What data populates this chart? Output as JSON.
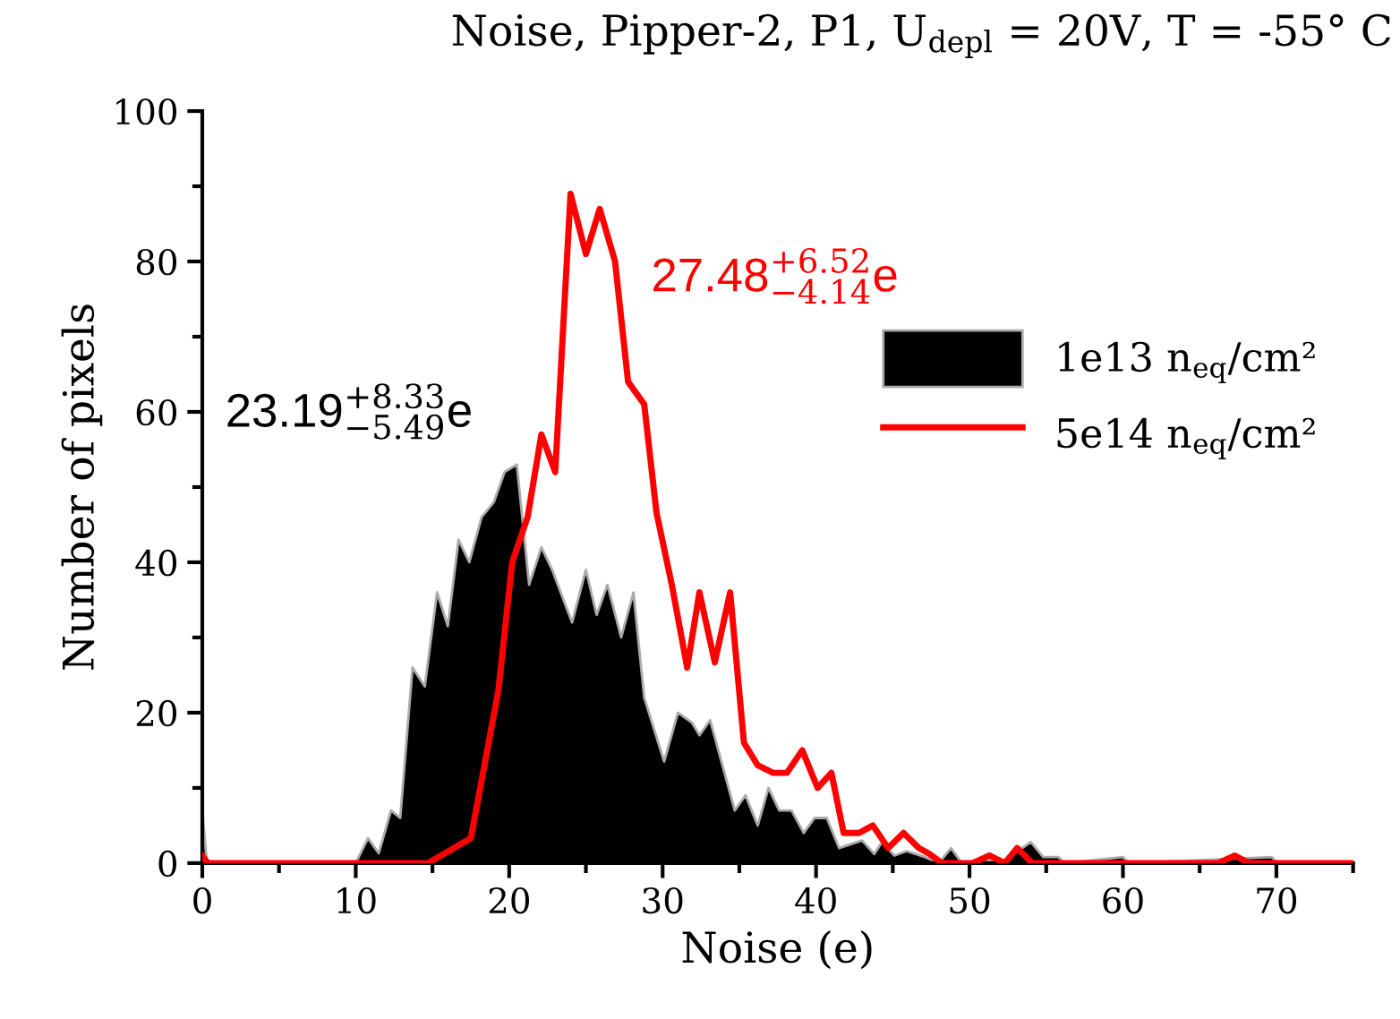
{
  "chart_data": {
    "type": "area",
    "title": "Noise, Pipper-2, P1, U$_{depl}$ = 20V, T = -55° C",
    "xlabel": "Noise (e)",
    "ylabel": "Number of pixels",
    "xlim": [
      0,
      75
    ],
    "xticks": [
      0,
      10,
      20,
      30,
      40,
      50,
      60,
      70
    ],
    "ylim": [
      0,
      100
    ],
    "yticks": [
      0,
      20,
      40,
      60,
      80,
      100
    ],
    "grid": false,
    "legend": "right",
    "series": [
      {
        "name": "1e13 n$_{eq}$/cm²",
        "color": "#000000",
        "x": [
          0,
          0.3,
          10,
          10.8,
          11.5,
          12.3,
          12.9,
          13.7,
          14.5,
          15.3,
          16,
          16.7,
          17.4,
          18.2,
          19,
          19.7,
          20.5,
          21.3,
          22.1,
          22.8,
          24.1,
          25,
          25.7,
          26.4,
          27.3,
          28.1,
          28.8,
          30.1,
          31,
          31.9,
          32.4,
          33.1,
          34.7,
          35.4,
          36.2,
          36.9,
          37.6,
          38.4,
          39.2,
          39.9,
          40.7,
          41.5,
          43,
          43.8,
          44.3,
          45.1,
          45.9,
          47.1,
          48,
          48.8,
          49.5,
          52.3,
          54,
          54.8,
          55.8,
          56.2,
          60,
          60.4,
          69.7,
          70.1,
          75
        ],
        "values": [
          7,
          0,
          0,
          3.3,
          1.3,
          7,
          6,
          26,
          23.5,
          36,
          31.5,
          43,
          40,
          46,
          48,
          52,
          53,
          37,
          42,
          39,
          32,
          39,
          33,
          37,
          30,
          36,
          22,
          13.5,
          20,
          18.7,
          17,
          19,
          7,
          9,
          5,
          10,
          7,
          7,
          4,
          6,
          6,
          2,
          3,
          1.2,
          2.8,
          1,
          1.6,
          0.8,
          0,
          2,
          0,
          0.4,
          2.8,
          0.8,
          0.8,
          0,
          0.8,
          0,
          0.8,
          0,
          0
        ]
      },
      {
        "name": "5e14 n$_{eq}$/cm²",
        "type": "line",
        "color": "#ff0000",
        "x": [
          0,
          0.35,
          14.7,
          17.5,
          19.3,
          20.2,
          21.2,
          22.1,
          23,
          24,
          25,
          25.9,
          26.9,
          27.75,
          28.8,
          29.6,
          30.6,
          31.6,
          32.4,
          33.4,
          34.4,
          35.3,
          36.2,
          37.2,
          38.1,
          39.1,
          40.1,
          41,
          41.8,
          42.8,
          43.7,
          44.7,
          45.7,
          46.7,
          47.4,
          48.2,
          50.2,
          51.3,
          52.3,
          53.1,
          54.1,
          66.2,
          67.3,
          68.2,
          75
        ],
        "values": [
          1,
          0,
          0,
          3.3,
          23,
          40,
          46,
          57,
          52,
          89,
          81,
          87,
          80,
          64,
          61,
          46.6,
          37,
          26,
          36,
          26.7,
          36,
          16,
          13,
          12,
          12,
          15,
          10,
          12,
          4,
          4,
          5,
          2,
          4,
          2,
          1.2,
          0,
          0,
          1,
          0,
          2,
          0,
          0,
          1,
          0,
          0
        ]
      }
    ],
    "annotations": [
      "23.19$^{+8.33}$$_{−5.49}$e",
      "27.48$^{+6.52}$$_{−4.14}$e"
    ]
  }
}
